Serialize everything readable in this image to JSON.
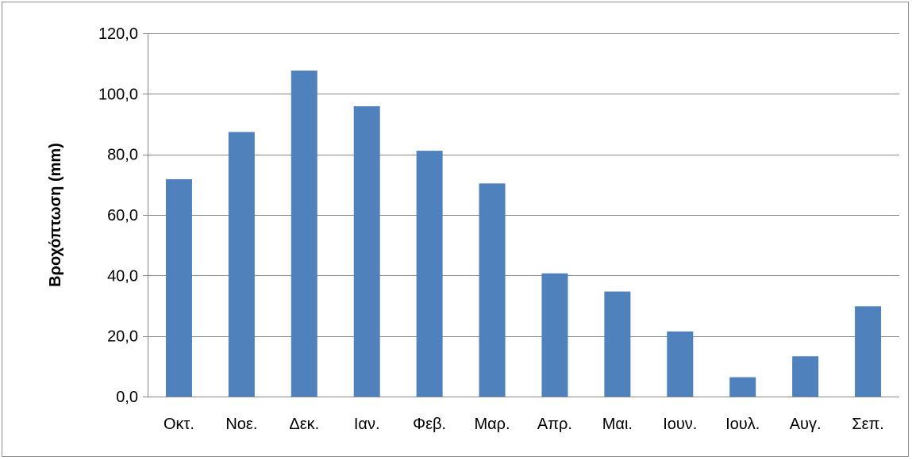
{
  "chart_data": {
    "type": "bar",
    "title": "",
    "xlabel": "",
    "ylabel": "Βροχόπτωση (mm)",
    "categories": [
      "Οκτ.",
      "Νοε.",
      "Δεκ.",
      "Ιαν.",
      "Φεβ.",
      "Μαρ.",
      "Απρ.",
      "Μαι.",
      "Ιουν.",
      "Ιουλ.",
      "Αυγ.",
      "Σεπ."
    ],
    "values": [
      71.8,
      87.4,
      107.7,
      95.9,
      81.2,
      70.4,
      40.7,
      34.7,
      21.5,
      6.4,
      13.3,
      29.8
    ],
    "ylim": [
      0,
      120
    ],
    "yticks": [
      "0,0",
      "20,0",
      "40,0",
      "60,0",
      "80,0",
      "100,0",
      "120,0"
    ],
    "ytick_values": [
      0,
      20,
      40,
      60,
      80,
      100,
      120
    ],
    "grid": true,
    "legend": "none",
    "bar_color": "#4F81BD",
    "gridline_color": "#868686",
    "axis_color": "#868686"
  }
}
